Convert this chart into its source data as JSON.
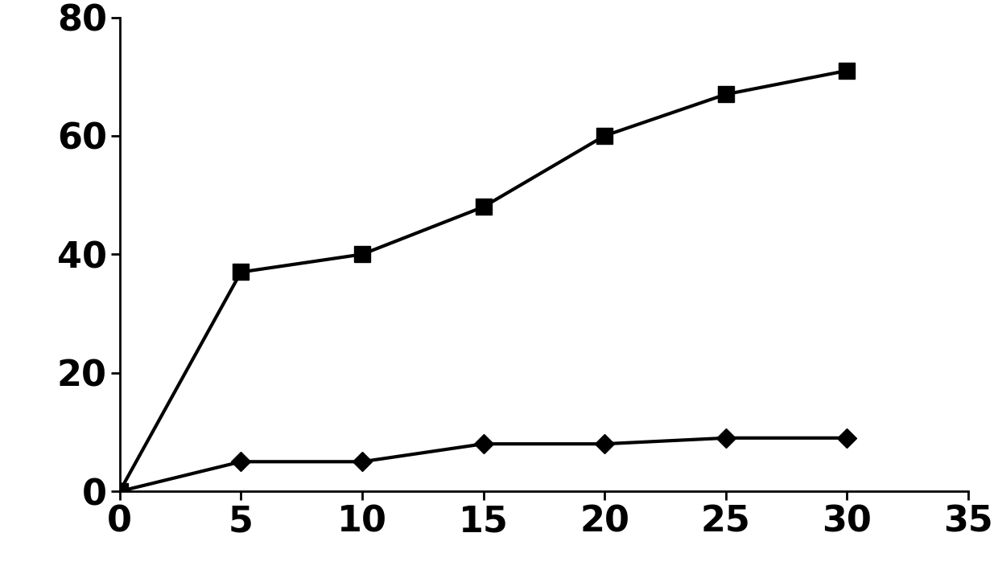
{
  "series1_x": [
    0,
    5,
    10,
    15,
    20,
    25,
    30
  ],
  "series1_y": [
    0,
    37,
    40,
    48,
    60,
    67,
    71
  ],
  "series2_x": [
    0,
    5,
    10,
    15,
    20,
    25,
    30
  ],
  "series2_y": [
    0,
    5,
    5,
    8,
    8,
    9,
    9
  ],
  "line_color": "#000000",
  "marker_square": "s",
  "marker_diamond": "D",
  "marker_size_square": 14,
  "marker_size_diamond": 12,
  "line_width": 3.0,
  "xlim": [
    0,
    35
  ],
  "ylim": [
    0,
    80
  ],
  "xticks": [
    0,
    5,
    10,
    15,
    20,
    25,
    30,
    35
  ],
  "yticks": [
    0,
    20,
    40,
    60,
    80
  ],
  "background_color": "#ffffff",
  "spine_color": "#000000",
  "tick_label_fontsize": 32,
  "tick_label_fontweight": "bold"
}
